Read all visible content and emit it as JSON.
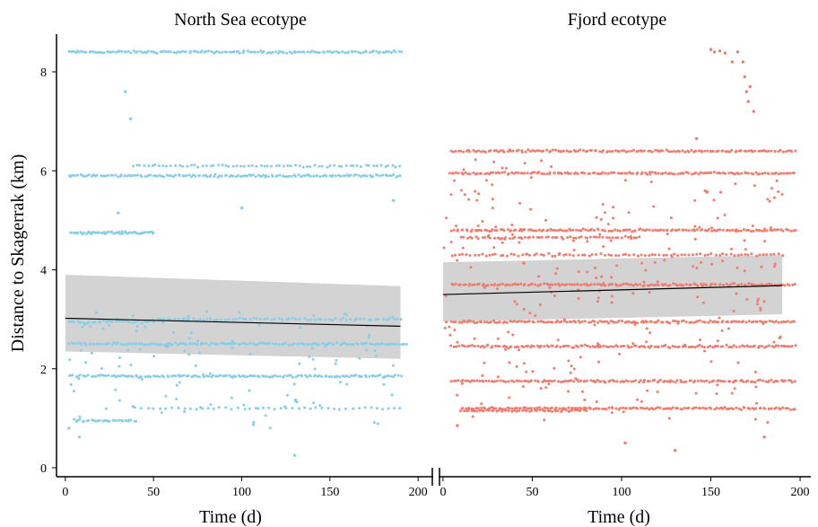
{
  "chart_data": {
    "type": "scatter",
    "ylabel": "Distance to Skagerrak (km)",
    "ylim": [
      0,
      8.7
    ],
    "yticks": [
      0,
      2,
      4,
      6,
      8
    ],
    "xticks": [
      0,
      50,
      100,
      150,
      200
    ],
    "panels": [
      {
        "title": "North Sea ecotype",
        "xlabel": "Time (d)",
        "xlim": [
          -5,
          205
        ],
        "color": "#87cde8",
        "bands": [
          {
            "y": 8.4,
            "x": [
              2,
              190
            ],
            "n": 150
          },
          {
            "y": 6.1,
            "x": [
              38,
              190
            ],
            "n": 70
          },
          {
            "y": 5.9,
            "x": [
              2,
              190
            ],
            "n": 150
          },
          {
            "y": 4.75,
            "x": [
              3,
              50
            ],
            "n": 55
          },
          {
            "y": 3.0,
            "x": [
              50,
              190
            ],
            "n": 70
          },
          {
            "y": 2.95,
            "x": [
              2,
              50
            ],
            "n": 30
          },
          {
            "y": 2.5,
            "x": [
              2,
              193
            ],
            "n": 150
          },
          {
            "y": 1.85,
            "x": [
              2,
              190
            ],
            "n": 150
          },
          {
            "y": 1.2,
            "x": [
              40,
              190
            ],
            "n": 45
          },
          {
            "y": 0.95,
            "x": [
              5,
              40
            ],
            "n": 30
          }
        ],
        "scatter_n": 110,
        "scatter_ylim": [
          0.8,
          3.2
        ],
        "outliers": [
          {
            "x": 34,
            "y": 7.6
          },
          {
            "x": 37,
            "y": 7.05
          },
          {
            "x": 30,
            "y": 5.15
          },
          {
            "x": 100,
            "y": 5.25
          },
          {
            "x": 130,
            "y": 0.25
          },
          {
            "x": 186,
            "y": 5.4
          },
          {
            "x": 8,
            "y": 0.62
          },
          {
            "x": 2,
            "y": 0.8
          }
        ],
        "trend": {
          "x": [
            0,
            190
          ],
          "y": [
            3.02,
            2.86
          ]
        },
        "ci": {
          "x": [
            0,
            190
          ],
          "upper": [
            3.9,
            3.67
          ],
          "lower": [
            2.35,
            2.2
          ]
        }
      },
      {
        "title": "Fjord ecotype",
        "xlabel": "Time (d)",
        "xlim": [
          -5,
          205
        ],
        "color": "#f07c6e",
        "bands": [
          {
            "y": 6.4,
            "x": [
              5,
              197
            ],
            "n": 150
          },
          {
            "y": 5.95,
            "x": [
              5,
              197
            ],
            "n": 150
          },
          {
            "y": 4.8,
            "x": [
              5,
              197
            ],
            "n": 150
          },
          {
            "y": 4.65,
            "x": [
              10,
              110
            ],
            "n": 60
          },
          {
            "y": 4.3,
            "x": [
              5,
              190
            ],
            "n": 90
          },
          {
            "y": 3.7,
            "x": [
              5,
              197
            ],
            "n": 150
          },
          {
            "y": 2.95,
            "x": [
              5,
              197
            ],
            "n": 150
          },
          {
            "y": 2.45,
            "x": [
              5,
              197
            ],
            "n": 150
          },
          {
            "y": 1.75,
            "x": [
              5,
              197
            ],
            "n": 150
          },
          {
            "y": 1.2,
            "x": [
              10,
              197
            ],
            "n": 150
          },
          {
            "y": 1.15,
            "x": [
              10,
              80
            ],
            "n": 50
          }
        ],
        "scatter_n": 260,
        "scatter_ylim": [
          0.9,
          6.3
        ],
        "outliers": [
          {
            "x": 150,
            "y": 8.45
          },
          {
            "x": 152,
            "y": 8.4
          },
          {
            "x": 155,
            "y": 8.42
          },
          {
            "x": 158,
            "y": 8.38
          },
          {
            "x": 162,
            "y": 8.2
          },
          {
            "x": 165,
            "y": 8.4
          },
          {
            "x": 168,
            "y": 8.2
          },
          {
            "x": 169,
            "y": 7.9
          },
          {
            "x": 170,
            "y": 7.6
          },
          {
            "x": 171,
            "y": 7.4
          },
          {
            "x": 172,
            "y": 7.7
          },
          {
            "x": 174,
            "y": 7.2
          },
          {
            "x": 142,
            "y": 6.65
          },
          {
            "x": 102,
            "y": 0.5
          },
          {
            "x": 130,
            "y": 0.35
          },
          {
            "x": 180,
            "y": 0.62
          },
          {
            "x": 8,
            "y": 0.85
          }
        ],
        "trend": {
          "x": [
            0,
            190
          ],
          "y": [
            3.5,
            3.68
          ]
        },
        "ci": {
          "x": [
            0,
            190
          ],
          "upper": [
            4.15,
            4.3
          ],
          "lower": [
            2.95,
            3.1
          ]
        }
      }
    ],
    "trend_color": "#000000",
    "ci_color": "#d3d3d3",
    "axis_break": true
  }
}
